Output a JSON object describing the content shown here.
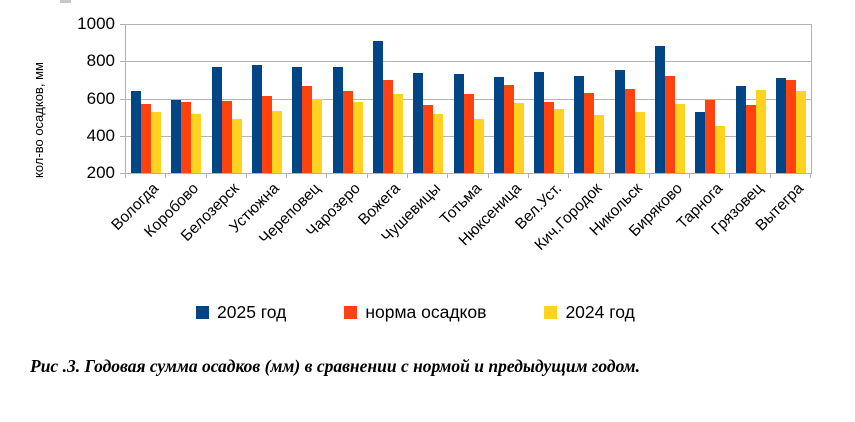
{
  "chart_data": {
    "type": "bar",
    "title": "",
    "xlabel": "",
    "ylabel": "кол-во осадков, мм",
    "ylim": [
      200,
      1000
    ],
    "yticks": [
      200,
      400,
      600,
      800,
      1000
    ],
    "grid": true,
    "legend_position": "bottom",
    "categories": [
      "Вологда",
      "Коробово",
      "Белозерск",
      "Устюжна",
      "Череповец",
      "Чарозеро",
      "Вожега",
      "Чушевицы",
      "Тотьма",
      "Нюксеница",
      "Вел.Уст.",
      "Кич.Городок",
      "Никольск",
      "Биряково",
      "Тарнога",
      "Грязовец",
      "Вытегра"
    ],
    "series": [
      {
        "name": "2025 год",
        "color": "#004586",
        "values": [
          640,
          590,
          770,
          780,
          770,
          770,
          910,
          735,
          730,
          715,
          740,
          720,
          755,
          880,
          530,
          665,
          710
        ]
      },
      {
        "name": "норма осадков",
        "color": "#ff420e",
        "values": [
          570,
          580,
          585,
          615,
          665,
          640,
          700,
          565,
          625,
          670,
          580,
          630,
          650,
          720,
          590,
          565,
          700
        ]
      },
      {
        "name": "2024 год",
        "color": "#ffd320",
        "values": [
          525,
          515,
          490,
          535,
          600,
          580,
          625,
          515,
          490,
          575,
          545,
          510,
          530,
          570,
          455,
          645,
          640
        ]
      }
    ]
  },
  "caption": "Рис .3. Годовая сумма осадков (мм) в сравнении с нормой и предыдущим годом.",
  "colors": {
    "grid": "#b5b5b5",
    "axis": "#b0b0b0",
    "text": "#000000",
    "series_2025": "#004586",
    "series_norm": "#ff420e",
    "series_2024": "#ffd320"
  }
}
